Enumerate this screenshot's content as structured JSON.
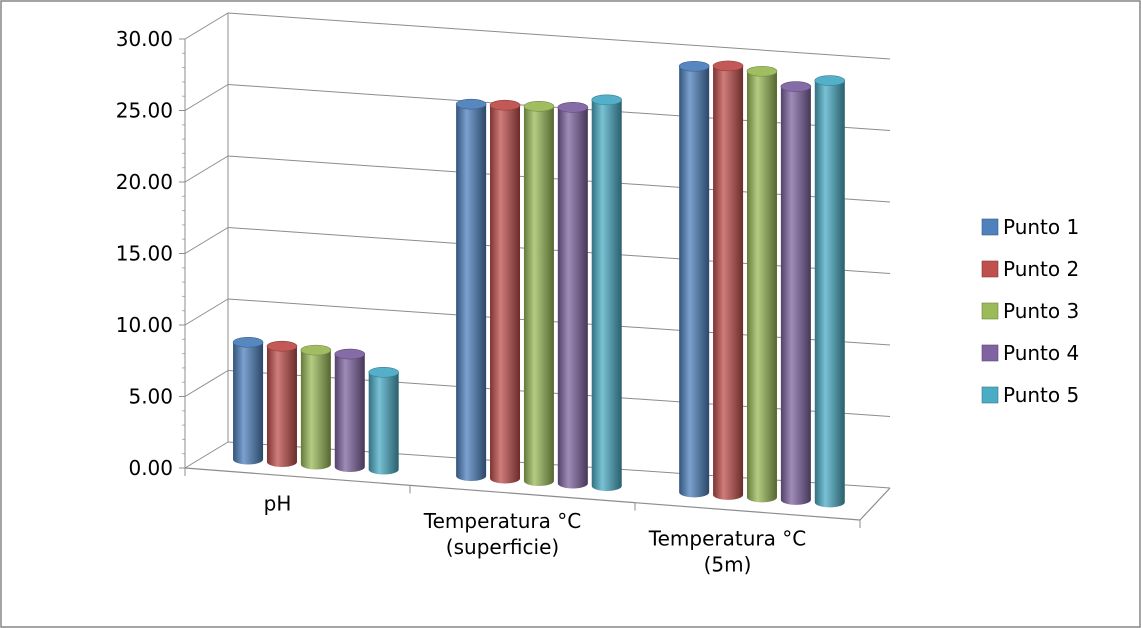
{
  "chart_data": {
    "type": "bar",
    "style": "3d-cylinder",
    "categories": [
      "pH",
      "Temperatura °C (superficie)",
      "Temperatura °C (5m)"
    ],
    "category_lines": [
      [
        "pH"
      ],
      [
        "Temperatura °C",
        "(superficie)"
      ],
      [
        "Temperatura °C",
        "(5m)"
      ]
    ],
    "series": [
      {
        "name": "Punto 1",
        "color": "#4F81BD",
        "values": [
          8.2,
          26.0,
          29.8
        ]
      },
      {
        "name": "Punto 2",
        "color": "#C0504D",
        "values": [
          8.1,
          26.1,
          30.0
        ]
      },
      {
        "name": "Punto 3",
        "color": "#9BBB59",
        "values": [
          8.0,
          26.2,
          29.8
        ]
      },
      {
        "name": "Punto 4",
        "color": "#8064A2",
        "values": [
          7.9,
          26.3,
          28.9
        ]
      },
      {
        "name": "Punto 5",
        "color": "#4BACC6",
        "values": [
          6.8,
          27.0,
          29.5
        ]
      }
    ],
    "yticks": [
      "0.00",
      "5.00",
      "10.00",
      "15.00",
      "20.00",
      "25.00",
      "30.00"
    ],
    "ylim": [
      0,
      30
    ],
    "grid": true,
    "legend_position": "right"
  }
}
